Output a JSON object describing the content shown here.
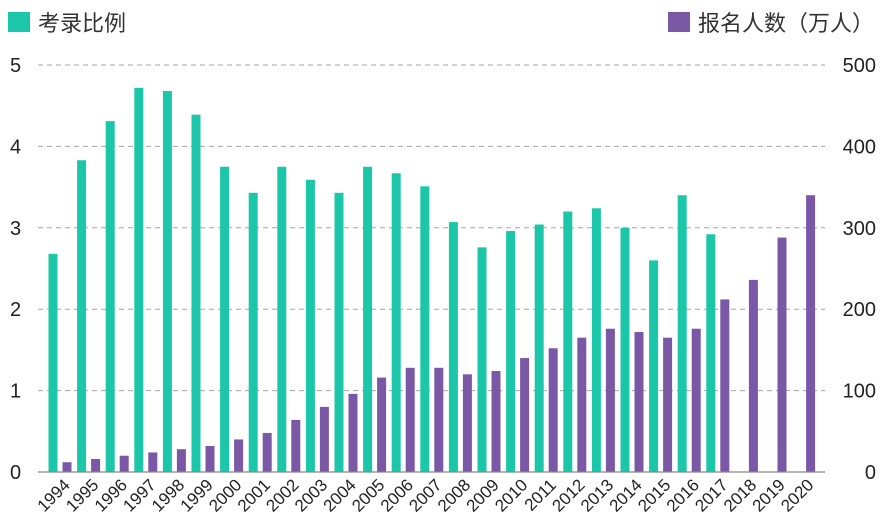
{
  "chart_data": {
    "type": "bar",
    "categories": [
      "1994",
      "1995",
      "1996",
      "1997",
      "1998",
      "1999",
      "2000",
      "2001",
      "2002",
      "2003",
      "2004",
      "2005",
      "2006",
      "2007",
      "2008",
      "2009",
      "2010",
      "2011",
      "2012",
      "2013",
      "2014",
      "2015",
      "2016",
      "2017",
      "2018",
      "2019",
      "2020"
    ],
    "series": [
      {
        "name": "考录比例",
        "axis": "left",
        "color": "#1cc7a9",
        "values": [
          2.68,
          3.83,
          4.31,
          4.72,
          4.68,
          4.39,
          3.75,
          3.43,
          3.75,
          3.59,
          3.43,
          3.75,
          3.67,
          3.51,
          3.07,
          2.76,
          2.96,
          3.04,
          3.2,
          3.24,
          3.0,
          2.6,
          3.4,
          2.92,
          null,
          null,
          null
        ]
      },
      {
        "name": "报名人数（万人）",
        "axis": "right",
        "color": "#7b58a6",
        "values": [
          12,
          16,
          20,
          24,
          28,
          32,
          40,
          48,
          64,
          80,
          96,
          116,
          128,
          128,
          120,
          124,
          140,
          152,
          165,
          176,
          172,
          165,
          176,
          212,
          236,
          288,
          340
        ]
      }
    ],
    "y_left": {
      "ylim": [
        0,
        5
      ],
      "ticks": [
        "0",
        "1",
        "2",
        "3",
        "4",
        "5"
      ]
    },
    "y_right": {
      "ylim": [
        0,
        500
      ],
      "ticks": [
        "0",
        "100",
        "200",
        "300",
        "400",
        "500"
      ]
    },
    "grid": true,
    "legend": {
      "left_label": "考录比例",
      "right_label": "报名人数（万人）",
      "placement": "top"
    }
  }
}
